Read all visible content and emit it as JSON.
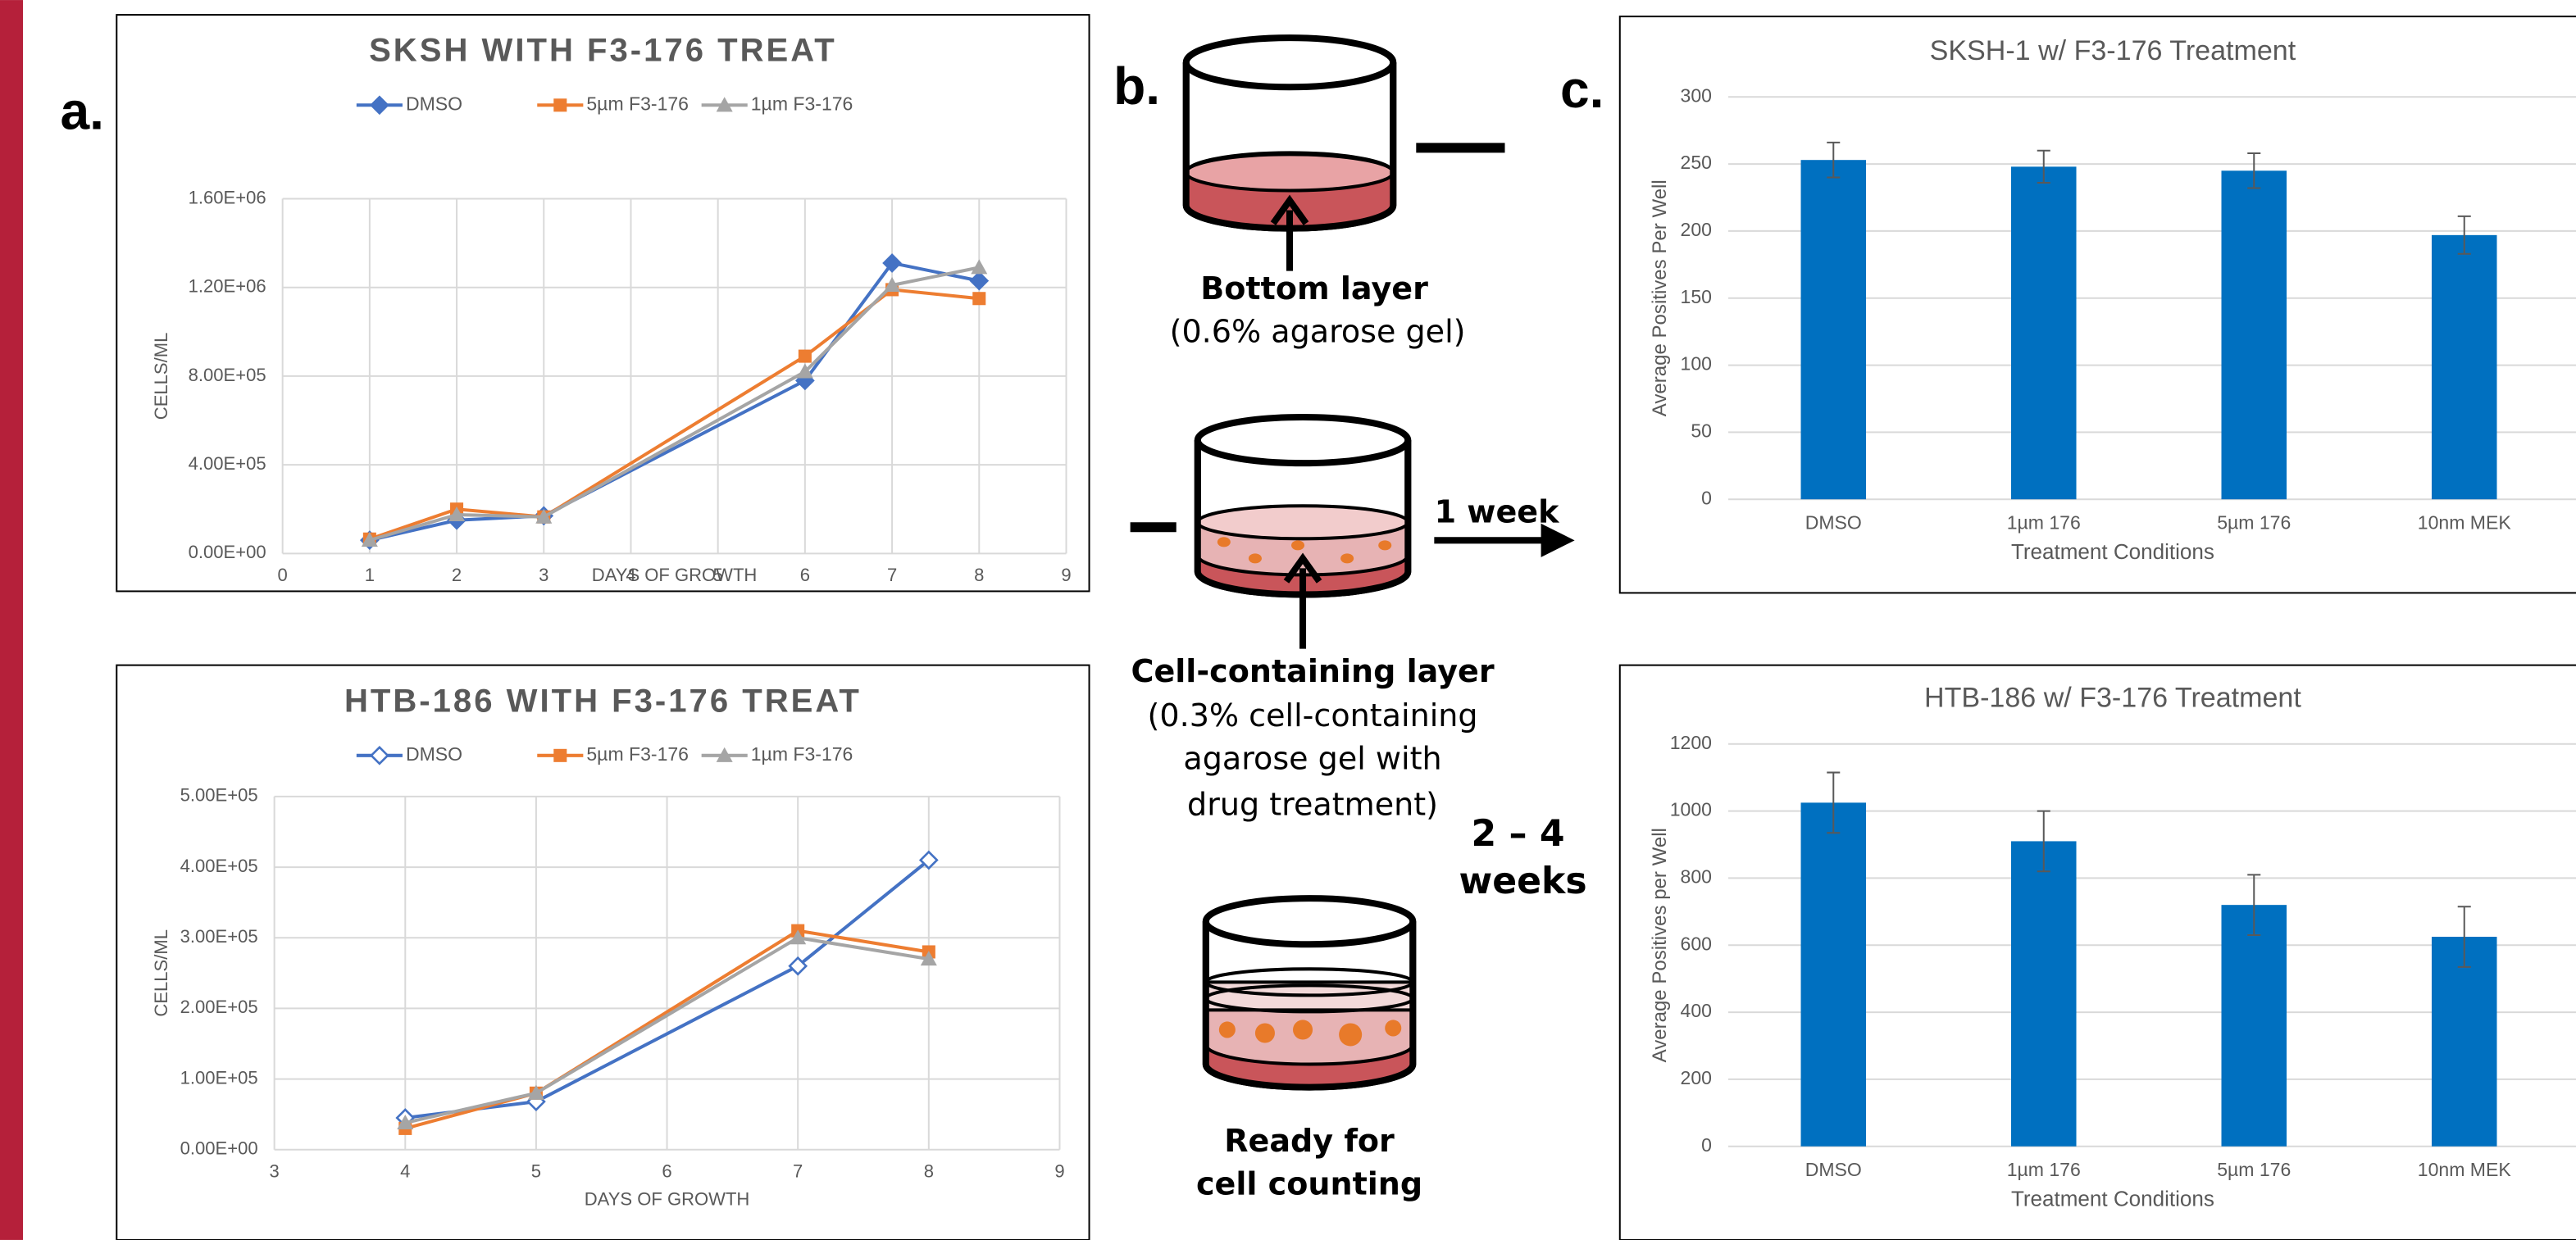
{
  "panel_labels": [
    "a.",
    "b.",
    "c."
  ],
  "chart_data": [
    {
      "type": "line",
      "title": "SKSH WITH F3-176 TREAT",
      "x_label": "DAYS OF GROWTH",
      "y_label": "CELLS/ML",
      "x": [
        1,
        2,
        3,
        6,
        7,
        8
      ],
      "series": [
        {
          "name": "DMSO",
          "color": "#4472c4",
          "marker": "diamond",
          "values": [
            60000,
            150000,
            170000,
            780000,
            1310000,
            1230000
          ]
        },
        {
          "name": "5µm F3-176",
          "color": "#ed7d31",
          "marker": "square",
          "values": [
            65000,
            200000,
            165000,
            890000,
            1190000,
            1150000
          ]
        },
        {
          "name": "1µm F3-176",
          "color": "#a5a5a5",
          "marker": "triangle",
          "values": [
            60000,
            175000,
            165000,
            820000,
            1210000,
            1290000
          ]
        }
      ],
      "xlim": [
        0,
        9
      ],
      "xticks": [
        0,
        1,
        2,
        3,
        4,
        5,
        6,
        7,
        8,
        9
      ],
      "ylim": [
        0,
        1600000
      ],
      "yticks": [
        {
          "value": 0,
          "label": "0.00E+00"
        },
        {
          "value": 400000,
          "label": "4.00E+05"
        },
        {
          "value": 800000,
          "label": "8.00E+05"
        },
        {
          "value": 1200000,
          "label": "1.20E+06"
        },
        {
          "value": 1600000,
          "label": "1.60E+06"
        }
      ],
      "grid": true,
      "xgrid": true,
      "legend": "top"
    },
    {
      "type": "line",
      "title": "HTB-186 WITH F3-176 TREAT",
      "x_label": "DAYS OF GROWTH",
      "y_label": "CELLS/ML",
      "x": [
        4,
        5,
        7,
        8
      ],
      "series": [
        {
          "name": "DMSO",
          "color": "#4472c4",
          "marker": "hollow-diamond",
          "values": [
            45000,
            68000,
            260000,
            410000
          ]
        },
        {
          "name": "5µm F3-176",
          "color": "#ed7d31",
          "marker": "square",
          "values": [
            30000,
            80000,
            310000,
            280000
          ]
        },
        {
          "name": "1µm F3-176",
          "color": "#a5a5a5",
          "marker": "triangle",
          "values": [
            38000,
            80000,
            300000,
            270000
          ]
        }
      ],
      "xlim": [
        3,
        9
      ],
      "xticks": [
        3,
        4,
        5,
        6,
        7,
        8,
        9
      ],
      "ylim": [
        0,
        500000
      ],
      "yticks": [
        {
          "value": 0,
          "label": "0.00E+00"
        },
        {
          "value": 100000,
          "label": "1.00E+05"
        },
        {
          "value": 200000,
          "label": "2.00E+05"
        },
        {
          "value": 300000,
          "label": "3.00E+05"
        },
        {
          "value": 400000,
          "label": "4.00E+05"
        },
        {
          "value": 500000,
          "label": "5.00E+05"
        }
      ],
      "grid": true,
      "xgrid": true,
      "legend": "top"
    },
    {
      "type": "bar",
      "title": "SKSH-1 w/ F3-176 Treatment",
      "x_label": "Treatment Conditions",
      "y_label": "Average Positives Per Well",
      "categories": [
        "DMSO",
        "1µm 176",
        "5µm 176",
        "10nm MEK"
      ],
      "values": [
        253,
        248,
        245,
        197
      ],
      "errors": [
        13,
        12,
        13,
        14
      ],
      "color": "#0070c0",
      "ylim": [
        0,
        300
      ],
      "yticks": [
        0,
        50,
        100,
        150,
        200,
        250,
        300
      ],
      "grid": true
    },
    {
      "type": "bar",
      "title": "HTB-186 w/ F3-176 Treatment",
      "x_label": "Treatment Conditions",
      "y_label": "Average Positives per Well",
      "categories": [
        "DMSO",
        "1µm 176",
        "5µm 176",
        "10nm MEK"
      ],
      "values": [
        1025,
        910,
        720,
        625
      ],
      "errors": [
        90,
        90,
        90,
        90
      ],
      "color": "#0070c0",
      "ylim": [
        0,
        1200
      ],
      "yticks": [
        0,
        200,
        400,
        600,
        800,
        1000,
        1200
      ],
      "grid": true
    }
  ],
  "diagram": {
    "bottom_layer": {
      "title": "Bottom layer",
      "detail": "(0.6% agarose gel)"
    },
    "cell_layer": {
      "title": "Cell-containing layer",
      "detail": [
        "(0.3% cell-containing",
        "agarose gel with",
        "drug treatment)"
      ]
    },
    "step_1": "1 week",
    "step_2": [
      "2 – 4",
      "weeks"
    ],
    "final": [
      "Ready for",
      "cell counting"
    ]
  }
}
